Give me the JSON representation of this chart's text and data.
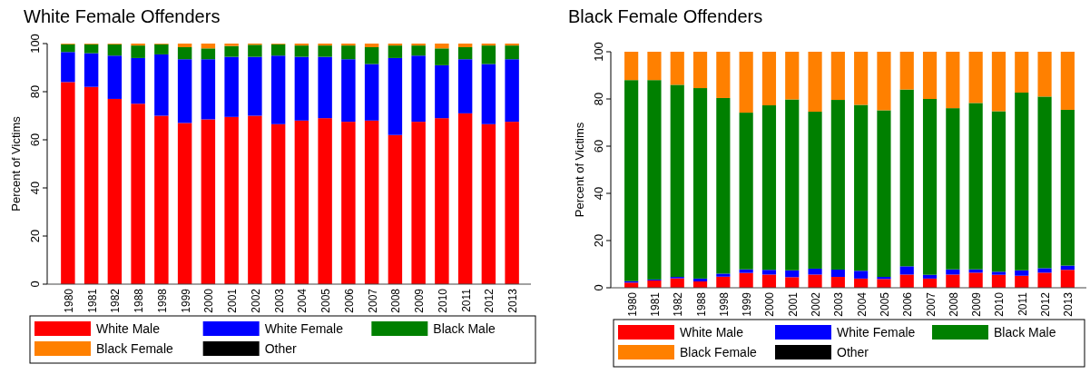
{
  "chart_data": [
    {
      "type": "bar",
      "stacked": true,
      "title": "White Female Offenders",
      "ylabel": "Percent of Victims",
      "categories": [
        "1980",
        "1981",
        "1982",
        "1988",
        "1998",
        "1999",
        "2000",
        "2001",
        "2002",
        "2003",
        "2004",
        "2005",
        "2006",
        "2007",
        "2008",
        "2009",
        "2010",
        "2011",
        "2012",
        "2013"
      ],
      "ylim": [
        0,
        100
      ],
      "yticks": [
        0,
        20,
        40,
        60,
        80,
        100
      ],
      "legend": "bottom",
      "series": [
        {
          "name": "White Male",
          "color": "#ff0000",
          "values": [
            84,
            82,
            77,
            75,
            70,
            67,
            68.5,
            69.5,
            70,
            66.5,
            68,
            69,
            67.5,
            68,
            62,
            67.5,
            69,
            71,
            66.5,
            67.5
          ]
        },
        {
          "name": "White Female",
          "color": "#0000ff",
          "values": [
            12.5,
            14,
            18,
            19,
            25.5,
            26.5,
            25,
            25,
            24.5,
            28.5,
            26.5,
            25.5,
            26,
            23.5,
            32,
            27.5,
            22,
            22.5,
            25,
            26
          ]
        },
        {
          "name": "Black Male",
          "color": "#008000",
          "values": [
            3.2,
            3.7,
            4.7,
            5.2,
            4.2,
            5,
            4.5,
            4.5,
            5,
            4.7,
            4.7,
            4.7,
            5.7,
            7,
            5.2,
            4.2,
            7,
            5,
            7.7,
            5.7
          ]
        },
        {
          "name": "Black Female",
          "color": "#ff8000",
          "values": [
            0.3,
            0.3,
            0.3,
            0.8,
            0.3,
            1.5,
            2,
            1,
            0.5,
            0.3,
            0.8,
            0.8,
            0.8,
            1.5,
            0.8,
            0.8,
            2,
            1.5,
            0.8,
            0.8
          ]
        },
        {
          "name": "Other",
          "color": "#000000",
          "values": [
            0,
            0,
            0,
            0,
            0,
            0,
            0,
            0,
            0,
            0,
            0,
            0,
            0,
            0,
            0,
            0,
            0,
            0,
            0,
            0
          ]
        }
      ]
    },
    {
      "type": "bar",
      "stacked": true,
      "title": "Black Female Offenders",
      "ylabel": "Percent of Victims",
      "categories": [
        "1980",
        "1981",
        "1982",
        "1988",
        "1998",
        "1999",
        "2000",
        "2001",
        "2002",
        "2003",
        "2004",
        "2005",
        "2006",
        "2007",
        "2008",
        "2009",
        "2010",
        "2011",
        "2012",
        "2013"
      ],
      "ylim": [
        0,
        100
      ],
      "yticks": [
        0,
        20,
        40,
        60,
        80,
        100
      ],
      "legend": "bottom",
      "series": [
        {
          "name": "White Male",
          "color": "#ff0000",
          "values": [
            2.2,
            3.1,
            4,
            2.7,
            4.7,
            6.3,
            5.6,
            4.5,
            5.6,
            4.6,
            3.9,
            3.7,
            5.6,
            3.9,
            5.6,
            6.4,
            5.5,
            5.1,
            6.4,
            7.6
          ]
        },
        {
          "name": "White Female",
          "color": "#0000ff",
          "values": [
            0.6,
            0.4,
            0.6,
            1.2,
            1.3,
            1.5,
            2,
            2.9,
            2.5,
            3.1,
            3.3,
            0.9,
            3.5,
            1.6,
            2.2,
            1.4,
            1.3,
            2.3,
            1.9,
            1.8
          ]
        },
        {
          "name": "Black Male",
          "color": "#008000",
          "values": [
            85.2,
            84.5,
            81.4,
            80.7,
            74.4,
            66.4,
            69.7,
            72.4,
            66.5,
            71.9,
            70.3,
            70.6,
            74.9,
            74.5,
            68.3,
            70.5,
            68,
            75.3,
            72.7,
            66
          ]
        },
        {
          "name": "Black Female",
          "color": "#ff8000",
          "values": [
            12,
            12,
            14,
            15.4,
            19.6,
            25.8,
            22.7,
            20.2,
            25.4,
            20.4,
            22.5,
            24.8,
            16,
            20,
            23.9,
            21.7,
            25.2,
            17.3,
            19,
            24.6
          ]
        },
        {
          "name": "Other",
          "color": "#000000",
          "values": [
            0,
            0,
            0,
            0,
            0,
            0,
            0,
            0,
            0,
            0,
            0,
            0,
            0,
            0,
            0,
            0,
            0,
            0,
            0,
            0
          ]
        }
      ]
    }
  ]
}
